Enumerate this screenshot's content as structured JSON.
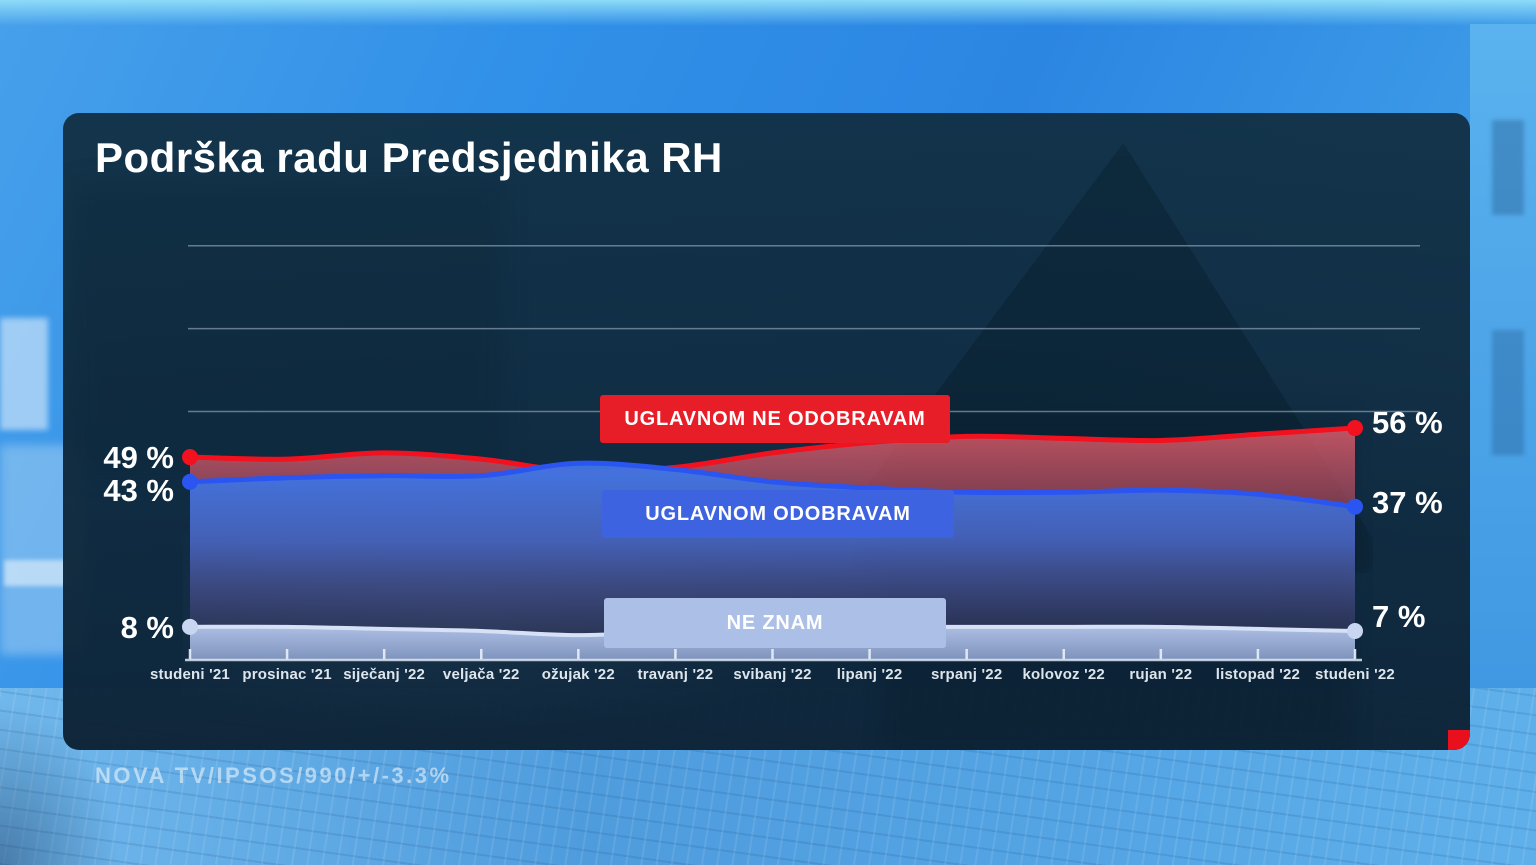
{
  "title": "Podrška radu Predsjednika RH",
  "source": "NOVA TV/IPSOS/990/+/-3.3%",
  "chart_data": {
    "type": "area",
    "title": "Podrška radu Predsjednika RH",
    "xlabel": "",
    "ylabel": "",
    "ylim": [
      0,
      100
    ],
    "grid_values": [
      60,
      80,
      100
    ],
    "grid_on": true,
    "legend_position": "on-chart",
    "categories": [
      "studeni '21",
      "prosinac '21",
      "siječanj '22",
      "veljača '22",
      "ožujak '22",
      "travanj '22",
      "svibanj '22",
      "lipanj '22",
      "srpanj '22",
      "kolovoz '22",
      "rujan '22",
      "listopad '22",
      "studeni '22"
    ],
    "series": [
      {
        "name": "UGLAVNOM NE ODOBRAVAM",
        "color": "#f2111f",
        "legend_color": "#e71d28",
        "values": [
          49,
          48.5,
          50,
          48.5,
          45.5,
          46.5,
          50,
          52.5,
          54,
          53.5,
          53,
          54.5,
          56
        ],
        "start_label": "49 %",
        "end_label": "56 %"
      },
      {
        "name": "UGLAVNOM ODOBRAVAM",
        "color": "#2b55f0",
        "legend_color": "#3e63e0",
        "values": [
          43,
          44,
          44.5,
          44.5,
          47.5,
          46,
          43,
          41.5,
          40.5,
          40.5,
          41,
          40,
          37
        ],
        "start_label": "43 %",
        "end_label": "37 %"
      },
      {
        "name": "NE ZNAM",
        "color": "#d7e1f6",
        "legend_color": "#abbfe7",
        "values": [
          8,
          8,
          7.5,
          7,
          6,
          7,
          8,
          8,
          8,
          8,
          8,
          7.5,
          7
        ],
        "start_label": "8 %",
        "end_label": "7 %"
      }
    ]
  }
}
